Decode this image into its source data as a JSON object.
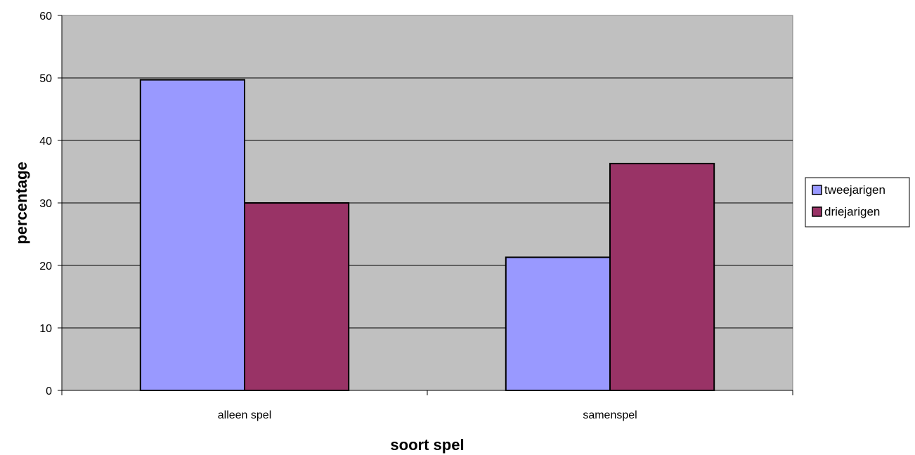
{
  "chart_data": {
    "type": "bar",
    "xlabel": "soort spel",
    "ylabel": "percentage",
    "categories": [
      "alleen spel",
      "samenspel"
    ],
    "series": [
      {
        "name": "tweejarigen",
        "values": [
          49.7,
          21.3
        ],
        "color": "#9999FF"
      },
      {
        "name": "driejarigen",
        "values": [
          30.0,
          36.3
        ],
        "color": "#993366"
      }
    ],
    "ylim": [
      0,
      60
    ],
    "yticks": [
      0,
      10,
      20,
      30,
      40,
      50,
      60
    ],
    "grid": true,
    "legend": "right",
    "plot_background": "#C0C0C0"
  }
}
